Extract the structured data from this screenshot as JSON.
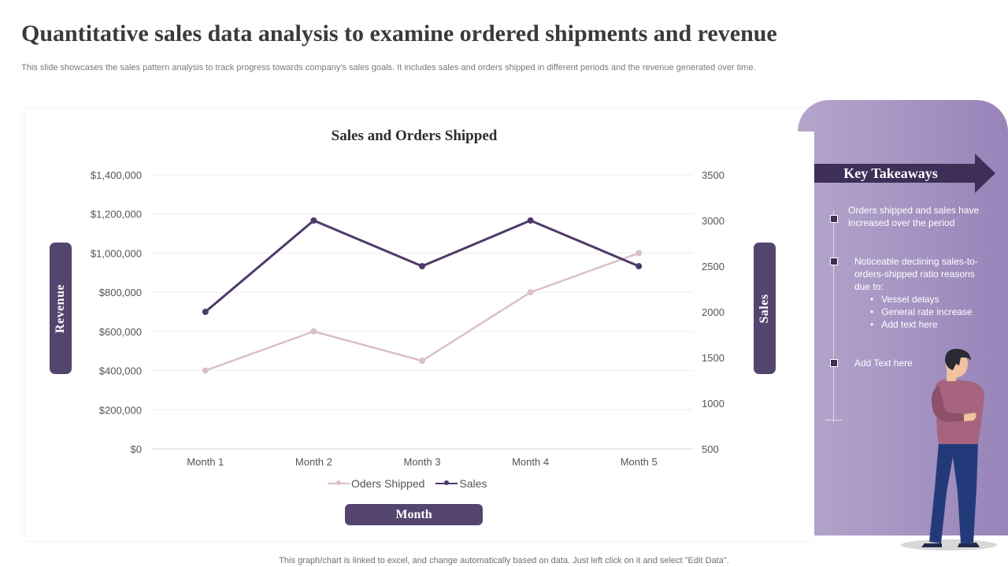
{
  "slide": {
    "title": "Quantitative sales data analysis to examine ordered shipments and revenue",
    "subtitle": "This slide showcases the sales pattern analysis  to track progress towards company's sales goals. It includes sales and orders shipped in different periods and the revenue generated over time.",
    "footer": "This graph/chart is linked to excel,  and change automatically based on data. Just left click on it and select \"Edit Data\"."
  },
  "labels": {
    "left_axis": "Revenue",
    "right_axis": "Sales",
    "x_axis": "Month"
  },
  "takeaways": {
    "heading": "Key Takeaways",
    "items": [
      "Orders shipped and sales have increased over the period",
      "Noticeable declining sales-to-orders-shipped  ratio reasons due to:",
      "Add Text here"
    ],
    "sub_items": [
      "Vessel delays",
      "General rate increase",
      "Add text here"
    ]
  },
  "colors": {
    "accent": "#54456e",
    "sales_line": "#4e3a68",
    "orders_line": "#dbbfcb",
    "panel_start": "#b4a6cc",
    "panel_end": "#9884b9"
  },
  "chart_data": {
    "type": "line",
    "title": "Sales and Orders Shipped",
    "categories": [
      "Month 1",
      "Month 2",
      "Month 3",
      "Month 4",
      "Month 5"
    ],
    "y_left": {
      "min": 0,
      "max": 1400000,
      "step": 200000,
      "ticks": [
        "$0",
        "$200,000",
        "$400,000",
        "$600,000",
        "$800,000",
        "$1,000,000",
        "$1,200,000",
        "$1,400,000"
      ]
    },
    "y_right": {
      "min": 500,
      "max": 3500,
      "step": 500,
      "ticks": [
        "500",
        "1000",
        "1500",
        "2000",
        "2500",
        "3000",
        "3500"
      ]
    },
    "series": [
      {
        "name": "Oders Shipped",
        "axis": "left",
        "values": [
          400000,
          600000,
          450000,
          800000,
          1000000
        ]
      },
      {
        "name": "Sales",
        "axis": "right",
        "values": [
          2000,
          3000,
          2500,
          3000,
          2500
        ]
      }
    ],
    "grid": true,
    "legend": "bottom"
  }
}
